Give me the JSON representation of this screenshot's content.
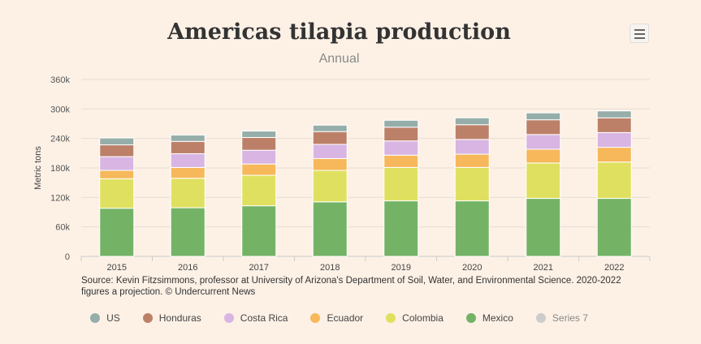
{
  "menu_icon": "hamburger-menu-icon",
  "source": "Source: Kevin Fitzsimmons, professor at University of Arizona's Department of Soil, Water, and Environmental Science. 2020-2022 figures a projection. © Undercurrent News",
  "chart_data": {
    "type": "bar",
    "stacked": true,
    "title": "Americas tilapia production",
    "subtitle": "Annual",
    "ylabel": "Metric tons",
    "xlabel": "",
    "ylim": [
      0,
      360000
    ],
    "yticks": [
      0,
      60000,
      120000,
      180000,
      240000,
      300000,
      360000
    ],
    "ytick_labels": [
      "0",
      "60k",
      "120k",
      "180k",
      "240k",
      "300k",
      "360k"
    ],
    "grid": true,
    "legend_position": "bottom",
    "categories": [
      "2015",
      "2016",
      "2017",
      "2018",
      "2019",
      "2020",
      "2021",
      "2022"
    ],
    "series": [
      {
        "name": "Mexico",
        "color": "#74b366",
        "values": [
          98000,
          99000,
          103000,
          111000,
          113000,
          113000,
          118000,
          118000
        ]
      },
      {
        "name": "Colombia",
        "color": "#e0e060",
        "values": [
          60000,
          60000,
          62000,
          64000,
          68000,
          68000,
          72000,
          74000
        ]
      },
      {
        "name": "Ecuador",
        "color": "#f6b85a",
        "values": [
          17000,
          22000,
          23000,
          24000,
          25000,
          27000,
          28000,
          30000
        ]
      },
      {
        "name": "Costa Rica",
        "color": "#d8b5e3",
        "values": [
          28000,
          28000,
          28000,
          29000,
          29000,
          30000,
          30000,
          30000
        ]
      },
      {
        "name": "Honduras",
        "color": "#bc8069",
        "values": [
          24000,
          25000,
          26000,
          26000,
          28000,
          30000,
          30000,
          30000
        ]
      },
      {
        "name": "US",
        "color": "#96aeaa",
        "values": [
          14000,
          13000,
          13000,
          13000,
          14000,
          14000,
          14000,
          14000
        ]
      },
      {
        "name": "Series 7",
        "color": "#cccccc",
        "values": [
          0,
          0,
          0,
          0,
          0,
          0,
          0,
          0
        ]
      }
    ],
    "legend_order": [
      "US",
      "Honduras",
      "Costa Rica",
      "Ecuador",
      "Colombia",
      "Mexico",
      "Series 7"
    ]
  }
}
